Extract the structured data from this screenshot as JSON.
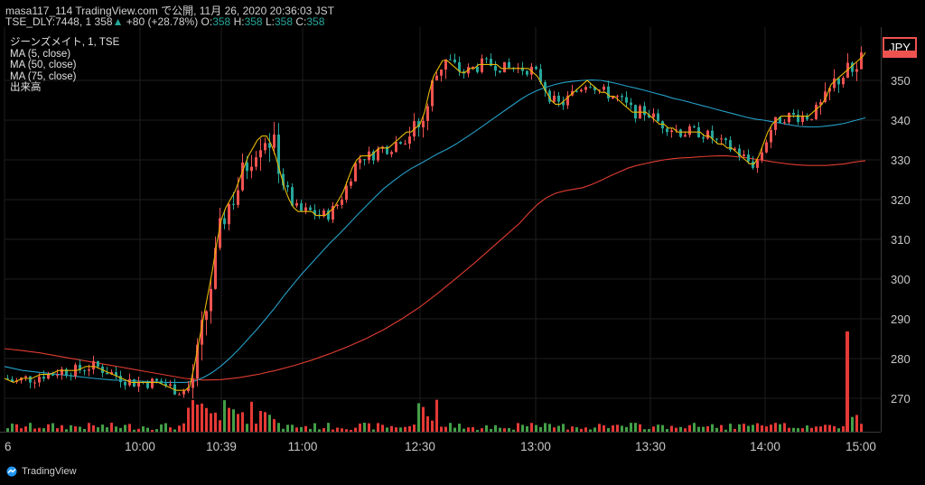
{
  "header": {
    "title": "masa117_114 TradingView.com で公開, 11月 26, 2020 20:36:03 JST",
    "symbol_line": "TSE_DLY:7448, 1",
    "last_price": "358",
    "change": "+80 (+28.78%)",
    "ohlc": {
      "o_label": "O:",
      "o": "358",
      "h_label": "H:",
      "h": "358",
      "l_label": "L:",
      "l": "358",
      "c_label": "C:",
      "c": "358"
    }
  },
  "legend": {
    "symbol": "ジーンズメイト, 1, TSE",
    "ma5": "MA (5, close)",
    "ma50": "MA (50, close)",
    "ma75": "MA (75, close)",
    "volume": "出来高"
  },
  "currency": "JPY",
  "footer": {
    "brand": "TradingView"
  },
  "colors": {
    "up": "#ef5350",
    "down": "#26a69a",
    "ma5": "#e6b800",
    "ma50": "#26a0c8",
    "ma75": "#e03c31",
    "vol_up": "#e53935",
    "vol_down": "#43a047",
    "grid": "#1e1e1e"
  },
  "chart_data": {
    "type": "candlestick",
    "y_ticks": [
      270,
      280,
      290,
      300,
      310,
      320,
      330,
      340,
      350
    ],
    "x_ticks": [
      "6",
      "10:00",
      "10:39",
      "11:00",
      "12:30",
      "13:00",
      "13:30",
      "14:00",
      "15:00"
    ],
    "ylim": [
      262,
      360
    ],
    "ma5": [
      [
        0,
        275
      ],
      [
        10,
        274
      ],
      [
        20,
        275
      ],
      [
        30,
        275
      ],
      [
        40,
        276
      ],
      [
        50,
        276
      ],
      [
        60,
        277
      ],
      [
        70,
        277
      ],
      [
        80,
        277
      ],
      [
        90,
        278
      ],
      [
        100,
        278
      ],
      [
        110,
        277
      ],
      [
        120,
        276
      ],
      [
        130,
        275
      ],
      [
        140,
        274
      ],
      [
        150,
        274
      ],
      [
        160,
        274
      ],
      [
        170,
        274
      ],
      [
        180,
        273
      ],
      [
        190,
        272
      ],
      [
        200,
        272
      ],
      [
        205,
        273
      ],
      [
        210,
        278
      ],
      [
        215,
        284
      ],
      [
        220,
        290
      ],
      [
        225,
        296
      ],
      [
        230,
        302
      ],
      [
        235,
        309
      ],
      [
        240,
        315
      ],
      [
        245,
        318
      ],
      [
        250,
        320
      ],
      [
        255,
        322
      ],
      [
        260,
        325
      ],
      [
        265,
        328
      ],
      [
        270,
        331
      ],
      [
        275,
        333
      ],
      [
        280,
        335
      ],
      [
        285,
        336
      ],
      [
        290,
        336
      ],
      [
        295,
        334
      ],
      [
        300,
        331
      ],
      [
        305,
        327
      ],
      [
        310,
        323
      ],
      [
        315,
        320
      ],
      [
        320,
        318
      ],
      [
        325,
        317
      ],
      [
        330,
        317
      ],
      [
        335,
        317
      ],
      [
        340,
        317
      ],
      [
        345,
        316
      ],
      [
        350,
        316
      ],
      [
        355,
        316
      ],
      [
        360,
        317
      ],
      [
        365,
        318
      ],
      [
        370,
        320
      ],
      [
        375,
        322
      ],
      [
        380,
        325
      ],
      [
        385,
        328
      ],
      [
        390,
        330
      ],
      [
        395,
        331
      ],
      [
        400,
        331
      ],
      [
        405,
        331
      ],
      [
        410,
        332
      ],
      [
        415,
        333
      ],
      [
        420,
        333
      ],
      [
        425,
        333
      ],
      [
        430,
        334
      ],
      [
        435,
        335
      ],
      [
        440,
        336
      ],
      [
        445,
        337
      ],
      [
        450,
        337
      ],
      [
        455,
        338
      ],
      [
        460,
        339
      ],
      [
        465,
        342
      ],
      [
        470,
        347
      ],
      [
        475,
        351
      ],
      [
        480,
        353
      ],
      [
        485,
        355
      ],
      [
        490,
        355
      ],
      [
        495,
        354
      ],
      [
        500,
        353
      ],
      [
        505,
        352
      ],
      [
        510,
        352
      ],
      [
        515,
        353
      ],
      [
        520,
        353
      ],
      [
        525,
        354
      ],
      [
        530,
        354
      ],
      [
        535,
        354
      ],
      [
        540,
        354
      ],
      [
        545,
        354
      ],
      [
        550,
        353
      ],
      [
        555,
        353
      ],
      [
        560,
        353
      ],
      [
        565,
        353
      ],
      [
        570,
        353
      ],
      [
        575,
        353
      ],
      [
        580,
        353
      ],
      [
        585,
        352
      ],
      [
        590,
        351
      ],
      [
        595,
        349
      ],
      [
        600,
        347
      ],
      [
        605,
        345
      ],
      [
        610,
        344
      ],
      [
        615,
        344
      ],
      [
        620,
        345
      ],
      [
        625,
        346
      ],
      [
        630,
        347
      ],
      [
        635,
        348
      ],
      [
        640,
        349
      ],
      [
        645,
        350
      ],
      [
        650,
        349
      ],
      [
        655,
        348
      ],
      [
        660,
        347
      ],
      [
        665,
        347
      ],
      [
        670,
        346
      ],
      [
        675,
        346
      ],
      [
        680,
        345
      ],
      [
        685,
        344
      ],
      [
        690,
        343
      ],
      [
        695,
        342
      ],
      [
        700,
        342
      ],
      [
        705,
        342
      ],
      [
        710,
        342
      ],
      [
        715,
        341
      ],
      [
        720,
        340
      ],
      [
        725,
        339
      ],
      [
        730,
        339
      ],
      [
        735,
        338
      ],
      [
        740,
        338
      ],
      [
        745,
        337
      ],
      [
        750,
        337
      ],
      [
        755,
        337
      ],
      [
        760,
        337
      ],
      [
        765,
        337
      ],
      [
        770,
        337
      ],
      [
        775,
        336
      ],
      [
        780,
        336
      ],
      [
        785,
        335
      ],
      [
        790,
        334
      ],
      [
        795,
        334
      ],
      [
        800,
        333
      ],
      [
        805,
        333
      ],
      [
        810,
        332
      ],
      [
        815,
        331
      ],
      [
        820,
        330
      ],
      [
        825,
        329
      ],
      [
        830,
        329
      ],
      [
        835,
        331
      ],
      [
        840,
        334
      ],
      [
        845,
        337
      ],
      [
        850,
        339
      ],
      [
        855,
        340
      ],
      [
        860,
        341
      ],
      [
        865,
        341
      ],
      [
        870,
        341
      ],
      [
        875,
        341
      ],
      [
        880,
        341
      ],
      [
        885,
        341
      ],
      [
        890,
        341
      ],
      [
        895,
        342
      ],
      [
        900,
        343
      ],
      [
        905,
        344
      ],
      [
        910,
        346
      ],
      [
        915,
        349
      ],
      [
        920,
        350
      ],
      [
        925,
        351
      ],
      [
        930,
        352
      ],
      [
        935,
        353
      ],
      [
        940,
        354
      ],
      [
        945,
        355
      ],
      [
        950,
        356
      ],
      [
        953,
        357
      ]
    ],
    "ma50": [
      [
        0,
        278
      ],
      [
        20,
        277
      ],
      [
        40,
        276.5
      ],
      [
        60,
        276
      ],
      [
        80,
        275.5
      ],
      [
        100,
        275
      ],
      [
        120,
        274.6
      ],
      [
        140,
        274.4
      ],
      [
        160,
        274.2
      ],
      [
        180,
        274
      ],
      [
        200,
        274
      ],
      [
        210,
        274.3
      ],
      [
        220,
        275.2
      ],
      [
        230,
        276.5
      ],
      [
        240,
        278.2
      ],
      [
        250,
        280.2
      ],
      [
        260,
        282.5
      ],
      [
        270,
        285
      ],
      [
        280,
        287.5
      ],
      [
        290,
        290.2
      ],
      [
        300,
        293
      ],
      [
        310,
        296
      ],
      [
        320,
        298.8
      ],
      [
        330,
        301.5
      ],
      [
        340,
        304
      ],
      [
        350,
        306.5
      ],
      [
        360,
        309
      ],
      [
        370,
        311.2
      ],
      [
        380,
        313.6
      ],
      [
        390,
        316
      ],
      [
        400,
        318.3
      ],
      [
        410,
        320.6
      ],
      [
        420,
        322.8
      ],
      [
        430,
        324.6
      ],
      [
        440,
        326.3
      ],
      [
        450,
        327.8
      ],
      [
        460,
        329
      ],
      [
        470,
        330.3
      ],
      [
        480,
        331.6
      ],
      [
        490,
        332.7
      ],
      [
        500,
        334
      ],
      [
        510,
        335.5
      ],
      [
        520,
        337
      ],
      [
        530,
        338.6
      ],
      [
        540,
        340.2
      ],
      [
        550,
        341.8
      ],
      [
        560,
        343.4
      ],
      [
        570,
        345
      ],
      [
        580,
        346.4
      ],
      [
        590,
        347.5
      ],
      [
        600,
        348.3
      ],
      [
        610,
        349
      ],
      [
        620,
        349.5
      ],
      [
        630,
        349.8
      ],
      [
        640,
        350
      ],
      [
        650,
        350.1
      ],
      [
        660,
        350
      ],
      [
        670,
        349.6
      ],
      [
        680,
        349.1
      ],
      [
        690,
        348.5
      ],
      [
        700,
        348
      ],
      [
        710,
        347.4
      ],
      [
        720,
        346.8
      ],
      [
        730,
        346.2
      ],
      [
        740,
        345.5
      ],
      [
        750,
        345
      ],
      [
        760,
        344.4
      ],
      [
        770,
        343.8
      ],
      [
        780,
        343.2
      ],
      [
        790,
        342.6
      ],
      [
        800,
        342
      ],
      [
        810,
        341.4
      ],
      [
        820,
        340.8
      ],
      [
        830,
        340.3
      ],
      [
        840,
        340
      ],
      [
        850,
        339.6
      ],
      [
        860,
        339.2
      ],
      [
        870,
        338.8
      ],
      [
        880,
        338.4
      ],
      [
        890,
        338.3
      ],
      [
        900,
        338.3
      ],
      [
        910,
        338.5
      ],
      [
        920,
        338.8
      ],
      [
        930,
        339.2
      ],
      [
        940,
        339.8
      ],
      [
        953,
        340.6
      ]
    ],
    "ma75": [
      [
        0,
        282.5
      ],
      [
        20,
        282
      ],
      [
        40,
        281.4
      ],
      [
        60,
        280.6
      ],
      [
        80,
        279.8
      ],
      [
        100,
        279
      ],
      [
        120,
        278.2
      ],
      [
        140,
        277.4
      ],
      [
        160,
        276.6
      ],
      [
        180,
        275.8
      ],
      [
        200,
        275
      ],
      [
        220,
        274.6
      ],
      [
        240,
        274.7
      ],
      [
        260,
        275.2
      ],
      [
        280,
        276
      ],
      [
        300,
        277
      ],
      [
        320,
        278.2
      ],
      [
        340,
        279.6
      ],
      [
        360,
        281.2
      ],
      [
        380,
        283
      ],
      [
        400,
        285
      ],
      [
        420,
        287.3
      ],
      [
        440,
        290
      ],
      [
        460,
        293
      ],
      [
        480,
        296.5
      ],
      [
        500,
        300.2
      ],
      [
        520,
        304
      ],
      [
        540,
        308
      ],
      [
        560,
        312
      ],
      [
        570,
        314
      ],
      [
        580,
        316.5
      ],
      [
        590,
        318.8
      ],
      [
        600,
        320.5
      ],
      [
        610,
        321.6
      ],
      [
        620,
        322.2
      ],
      [
        630,
        322.6
      ],
      [
        640,
        323
      ],
      [
        650,
        323.8
      ],
      [
        660,
        324.8
      ],
      [
        670,
        325.9
      ],
      [
        680,
        326.9
      ],
      [
        690,
        327.9
      ],
      [
        700,
        328.6
      ],
      [
        710,
        329.1
      ],
      [
        720,
        329.6
      ],
      [
        730,
        330
      ],
      [
        740,
        330.3
      ],
      [
        750,
        330.5
      ],
      [
        760,
        330.6
      ],
      [
        770,
        330.8
      ],
      [
        780,
        330.9
      ],
      [
        790,
        331
      ],
      [
        800,
        331
      ],
      [
        810,
        330.8
      ],
      [
        820,
        330.6
      ],
      [
        830,
        330.2
      ],
      [
        840,
        329.9
      ],
      [
        850,
        329.5
      ],
      [
        860,
        329.2
      ],
      [
        870,
        328.9
      ],
      [
        880,
        328.7
      ],
      [
        890,
        328.6
      ],
      [
        900,
        328.6
      ],
      [
        910,
        328.6
      ],
      [
        920,
        328.8
      ],
      [
        930,
        329
      ],
      [
        940,
        329.4
      ],
      [
        953,
        329.8
      ]
    ]
  }
}
